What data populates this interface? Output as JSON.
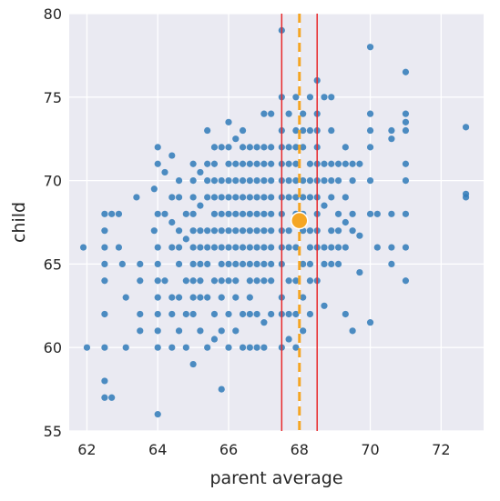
{
  "chart_data": {
    "type": "scatter",
    "title": "",
    "xlabel": "parent average",
    "ylabel": "child",
    "xlim": [
      61.5,
      73.2
    ],
    "ylim": [
      55,
      80
    ],
    "xticks": [
      62,
      64,
      66,
      68,
      70,
      72
    ],
    "yticks": [
      55,
      60,
      65,
      70,
      75,
      80
    ],
    "grid": true,
    "background": "#eaeaf2",
    "series": [
      {
        "type": "scatter",
        "color": "#2f7ab8",
        "x": [
          61.9,
          62.0,
          62.5,
          62.5,
          62.5,
          62.5,
          62.5,
          62.5,
          62.5,
          62.5,
          62.5,
          62.7,
          62.7,
          62.9,
          62.9,
          63.0,
          63.1,
          63.1,
          63.4,
          63.5,
          63.5,
          63.5,
          63.5,
          63.9,
          63.9,
          64.0,
          64.0,
          64.0,
          64.0,
          64.0,
          64.0,
          64.0,
          64.0,
          64.0,
          64.0,
          64.0,
          64.2,
          64.2,
          64.2,
          64.4,
          64.4,
          64.4,
          64.4,
          64.4,
          64.4,
          64.4,
          64.6,
          64.6,
          64.6,
          64.6,
          64.6,
          64.6,
          64.6,
          64.8,
          64.8,
          64.8,
          64.8,
          64.8,
          65.0,
          65.0,
          65.0,
          65.0,
          65.0,
          65.0,
          65.0,
          65.0,
          65.0,
          65.0,
          65.0,
          65.2,
          65.2,
          65.2,
          65.2,
          65.2,
          65.2,
          65.2,
          65.2,
          65.4,
          65.4,
          65.4,
          65.4,
          65.4,
          65.4,
          65.4,
          65.4,
          65.4,
          65.6,
          65.6,
          65.6,
          65.6,
          65.6,
          65.6,
          65.6,
          65.6,
          65.6,
          65.6,
          65.8,
          65.8,
          65.8,
          65.8,
          65.8,
          65.8,
          65.8,
          65.8,
          65.8,
          65.8,
          65.8,
          66.0,
          66.0,
          66.0,
          66.0,
          66.0,
          66.0,
          66.0,
          66.0,
          66.0,
          66.0,
          66.0,
          66.0,
          66.2,
          66.2,
          66.2,
          66.2,
          66.2,
          66.2,
          66.2,
          66.2,
          66.2,
          66.2,
          66.2,
          66.4,
          66.4,
          66.4,
          66.4,
          66.4,
          66.4,
          66.4,
          66.4,
          66.4,
          66.4,
          66.4,
          66.6,
          66.6,
          66.6,
          66.6,
          66.6,
          66.6,
          66.6,
          66.6,
          66.6,
          66.6,
          66.6,
          66.6,
          66.8,
          66.8,
          66.8,
          66.8,
          66.8,
          66.8,
          66.8,
          66.8,
          66.8,
          66.8,
          66.8,
          67.0,
          67.0,
          67.0,
          67.0,
          67.0,
          67.0,
          67.0,
          67.0,
          67.0,
          67.0,
          67.0,
          67.0,
          67.2,
          67.2,
          67.2,
          67.2,
          67.2,
          67.2,
          67.2,
          67.2,
          67.2,
          67.2,
          67.2,
          67.5,
          67.5,
          67.5,
          67.5,
          67.5,
          67.5,
          67.5,
          67.5,
          67.5,
          67.5,
          67.5,
          67.5,
          67.5,
          67.5,
          67.7,
          67.7,
          67.7,
          67.7,
          67.7,
          67.7,
          67.7,
          67.7,
          67.7,
          67.7,
          67.9,
          67.9,
          67.9,
          67.9,
          67.9,
          67.9,
          67.9,
          67.9,
          67.9,
          67.9,
          67.9,
          68.1,
          68.1,
          68.1,
          68.1,
          68.1,
          68.1,
          68.1,
          68.1,
          68.1,
          68.1,
          68.3,
          68.3,
          68.3,
          68.3,
          68.3,
          68.3,
          68.3,
          68.3,
          68.3,
          68.3,
          68.5,
          68.5,
          68.5,
          68.5,
          68.5,
          68.5,
          68.5,
          68.5,
          68.5,
          68.5,
          68.5,
          68.7,
          68.7,
          68.7,
          68.7,
          68.7,
          68.7,
          68.7,
          68.9,
          68.9,
          68.9,
          68.9,
          68.9,
          68.9,
          68.9,
          68.9,
          69.1,
          69.1,
          69.1,
          69.1,
          69.1,
          69.1,
          69.3,
          69.3,
          69.3,
          69.3,
          69.3,
          69.3,
          69.5,
          69.5,
          69.5,
          69.5,
          69.5,
          69.7,
          69.7,
          69.7,
          70.0,
          70.0,
          70.0,
          70.0,
          70.0,
          70.0,
          70.0,
          70.2,
          70.2,
          70.6,
          70.6,
          70.6,
          70.6,
          70.6,
          71.0,
          71.0,
          71.0,
          71.0,
          71.0,
          71.0,
          71.0,
          71.0,
          71.0,
          72.7,
          72.7,
          72.7
        ],
        "y": [
          66.0,
          60.0,
          68.0,
          67.0,
          66.0,
          65.0,
          64.0,
          62.0,
          60.0,
          58.0,
          57.0,
          68.0,
          57.0,
          68.0,
          66.0,
          65.0,
          60.0,
          63.0,
          69.0,
          65.0,
          64.0,
          62.0,
          61.0,
          69.5,
          67.0,
          72.0,
          71.0,
          68.0,
          66.0,
          65.0,
          64.0,
          63.0,
          62.0,
          61.0,
          60.0,
          56.0,
          70.5,
          68.0,
          64.0,
          71.5,
          69.0,
          67.5,
          66.0,
          63.0,
          62.0,
          60.0,
          70.0,
          69.0,
          67.0,
          66.0,
          65.0,
          63.0,
          61.0,
          68.0,
          66.5,
          64.0,
          62.0,
          60.0,
          71.0,
          70.0,
          69.0,
          68.0,
          67.0,
          66.0,
          65.0,
          64.0,
          63.0,
          62.0,
          59.0,
          70.5,
          68.5,
          67.0,
          66.0,
          65.0,
          64.0,
          63.0,
          61.0,
          73.0,
          71.0,
          70.0,
          69.0,
          67.0,
          66.0,
          65.0,
          63.0,
          60.0,
          72.0,
          71.0,
          70.0,
          69.0,
          68.0,
          67.0,
          66.0,
          64.0,
          62.0,
          60.5,
          72.0,
          70.0,
          69.0,
          68.0,
          67.0,
          66.0,
          65.0,
          64.0,
          63.0,
          61.0,
          57.5,
          73.5,
          72.0,
          71.0,
          70.0,
          69.0,
          68.0,
          67.0,
          66.0,
          65.0,
          64.0,
          62.0,
          60.0,
          72.5,
          71.0,
          70.0,
          69.0,
          68.0,
          67.0,
          66.0,
          65.0,
          64.0,
          63.0,
          61.0,
          73.0,
          72.0,
          71.0,
          70.0,
          69.0,
          68.0,
          67.0,
          66.0,
          65.0,
          62.0,
          60.0,
          72.0,
          71.0,
          70.0,
          69.0,
          68.0,
          67.0,
          66.0,
          65.0,
          64.0,
          63.0,
          62.0,
          60.0,
          72.0,
          71.0,
          70.0,
          69.0,
          68.0,
          67.0,
          66.0,
          65.0,
          64.0,
          62.0,
          60.0,
          74.0,
          72.0,
          71.0,
          70.0,
          69.0,
          68.0,
          67.0,
          66.0,
          65.0,
          64.0,
          61.5,
          60.0,
          74.0,
          72.0,
          71.0,
          70.0,
          69.0,
          68.0,
          67.0,
          66.0,
          65.0,
          64.0,
          62.0,
          79.0,
          75.0,
          73.0,
          72.0,
          71.0,
          70.0,
          69.0,
          68.0,
          67.0,
          66.0,
          65.0,
          63.0,
          62.0,
          60.0,
          74.0,
          72.0,
          71.0,
          70.0,
          69.0,
          67.0,
          66.0,
          64.0,
          62.0,
          60.5,
          75.0,
          73.0,
          72.0,
          71.0,
          70.0,
          69.0,
          68.0,
          66.0,
          64.0,
          62.0,
          60.0,
          74.0,
          73.0,
          72.0,
          70.0,
          69.0,
          68.0,
          67.0,
          65.0,
          63.0,
          61.0,
          75.0,
          73.0,
          71.0,
          70.0,
          69.0,
          67.0,
          66.0,
          65.0,
          64.0,
          62.0,
          76.0,
          74.0,
          73.0,
          72.0,
          71.0,
          70.0,
          69.0,
          68.0,
          67.0,
          66.0,
          64.0,
          75.0,
          71.0,
          70.0,
          68.5,
          66.0,
          65.0,
          62.5,
          75.0,
          73.0,
          71.0,
          70.0,
          69.0,
          67.0,
          66.0,
          65.0,
          71.0,
          70.0,
          68.0,
          67.0,
          66.0,
          65.0,
          72.0,
          71.0,
          69.0,
          67.5,
          66.0,
          62.0,
          71.0,
          70.0,
          68.0,
          67.0,
          61.0,
          71.0,
          66.7,
          64.5,
          78.0,
          74.0,
          73.0,
          72.0,
          70.0,
          68.0,
          61.5,
          68.0,
          66.0,
          73.0,
          72.5,
          68.0,
          66.0,
          65.0,
          76.5,
          74.0,
          73.5,
          73.0,
          71.0,
          70.0,
          68.0,
          66.0,
          64.0,
          73.2,
          69.2,
          69.0
        ]
      },
      {
        "type": "mean-marker",
        "color": "#f5a623",
        "x": [
          68.0
        ],
        "y": [
          67.6
        ]
      }
    ],
    "reference_lines": [
      {
        "orientation": "vertical",
        "x": 67.5,
        "color": "#e8282b",
        "style": "solid"
      },
      {
        "orientation": "vertical",
        "x": 68.5,
        "color": "#e8282b",
        "style": "solid"
      },
      {
        "orientation": "vertical",
        "x": 68.0,
        "color": "#f5a623",
        "style": "dashed"
      }
    ]
  }
}
